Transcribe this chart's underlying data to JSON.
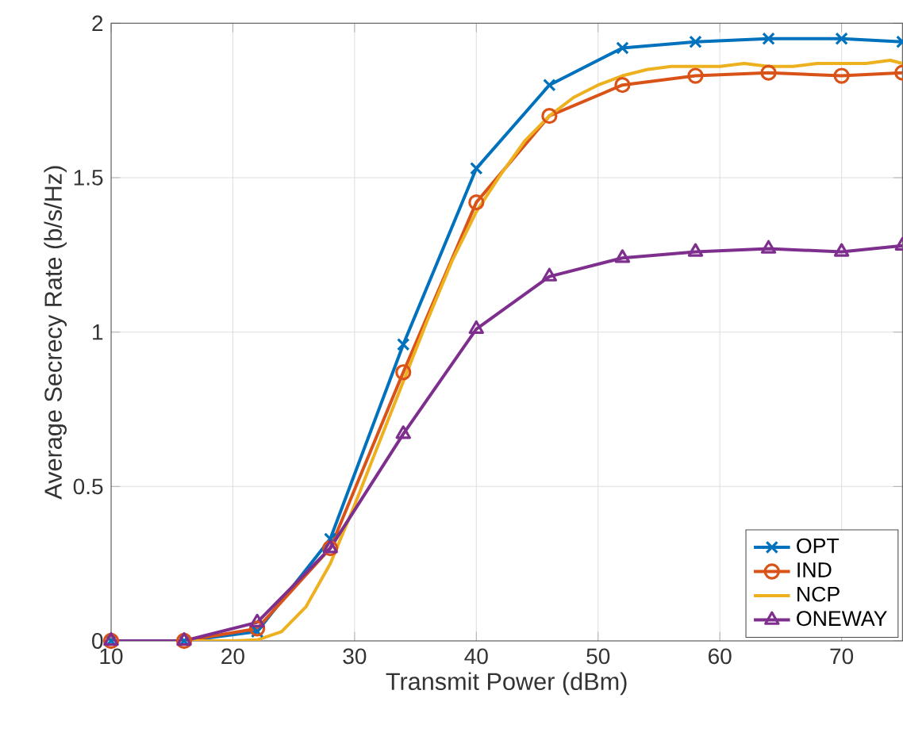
{
  "chart_data": {
    "type": "line",
    "xlabel": "Transmit Power (dBm)",
    "ylabel": "Average Secrecy Rate (b/s/Hz)",
    "series": [
      {
        "name": "OPT",
        "color": "#0072bd",
        "marker": "cross",
        "x": [
          10,
          16,
          22,
          28,
          34,
          40,
          46,
          52,
          58,
          64,
          70,
          75
        ],
        "values": [
          0,
          0,
          0.03,
          0.33,
          0.96,
          1.53,
          1.8,
          1.92,
          1.94,
          1.95,
          1.95,
          1.94
        ]
      },
      {
        "name": "IND",
        "color": "#d95319",
        "marker": "circle",
        "x": [
          10,
          16,
          22,
          28,
          34,
          40,
          46,
          52,
          58,
          64,
          70,
          75
        ],
        "values": [
          0,
          0,
          0.04,
          0.3,
          0.87,
          1.42,
          1.7,
          1.8,
          1.83,
          1.84,
          1.83,
          1.84
        ]
      },
      {
        "name": "NCP",
        "color": "#edb120",
        "marker": "none",
        "x": [
          16,
          18,
          20,
          22,
          24,
          26,
          28,
          30,
          32,
          34,
          36,
          38,
          40,
          42,
          44,
          46,
          48,
          50,
          52,
          54,
          56,
          58,
          60,
          62,
          64,
          66,
          68,
          70,
          72,
          74,
          75
        ],
        "values": [
          0,
          0,
          0,
          0.003,
          0.03,
          0.11,
          0.25,
          0.44,
          0.64,
          0.84,
          1.04,
          1.23,
          1.39,
          1.51,
          1.62,
          1.7,
          1.76,
          1.8,
          1.83,
          1.85,
          1.86,
          1.86,
          1.86,
          1.87,
          1.86,
          1.86,
          1.87,
          1.87,
          1.87,
          1.88,
          1.87
        ]
      },
      {
        "name": "ONEWAY",
        "color": "#7e2f8e",
        "marker": "triangle",
        "x": [
          10,
          16,
          22,
          28,
          34,
          40,
          46,
          52,
          58,
          64,
          70,
          75
        ],
        "values": [
          0,
          0,
          0.06,
          0.3,
          0.67,
          1.01,
          1.18,
          1.24,
          1.26,
          1.27,
          1.26,
          1.28
        ]
      }
    ],
    "xlim": [
      10,
      75
    ],
    "xticks": [
      10,
      20,
      30,
      40,
      50,
      60,
      70
    ],
    "ylim": [
      0,
      2
    ],
    "yticks": [
      0,
      0.5,
      1,
      1.5,
      2
    ],
    "grid": true,
    "legend": "bottom right"
  }
}
